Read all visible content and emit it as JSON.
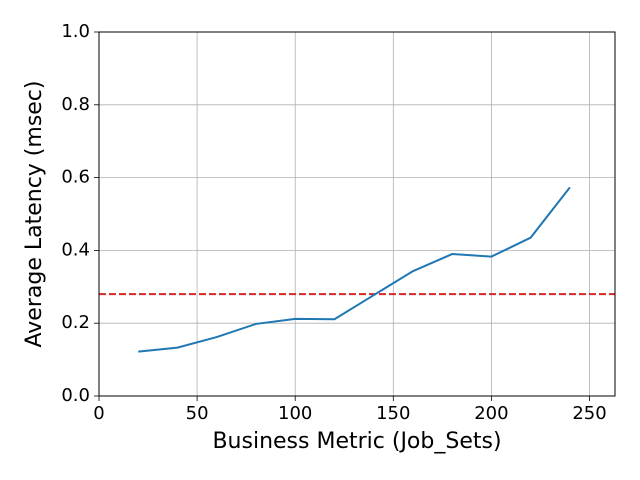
{
  "chart_data": {
    "type": "line",
    "xlabel": "Business Metric (Job_Sets)",
    "ylabel": "Average Latency (msec)",
    "x": [
      20,
      40,
      60,
      80,
      100,
      120,
      140,
      160,
      180,
      200,
      220,
      240
    ],
    "series": [
      {
        "color": "#1f77b4",
        "values": [
          0.122,
          0.133,
          0.162,
          0.198,
          0.212,
          0.211,
          0.277,
          0.343,
          0.39,
          0.383,
          0.435,
          0.573
        ]
      }
    ],
    "hlines": [
      {
        "value": 0.28,
        "color": "#d62728",
        "style": "dashed"
      }
    ],
    "xlim": [
      0,
      263
    ],
    "ylim": [
      0,
      1
    ],
    "xticks": [
      0,
      50,
      100,
      150,
      200,
      250
    ],
    "yticks": [
      {
        "value": 0,
        "label": "0.0"
      },
      0.2,
      0.4,
      0.6,
      0.8,
      {
        "value": 1,
        "label": "1.0"
      }
    ],
    "grid": true
  }
}
